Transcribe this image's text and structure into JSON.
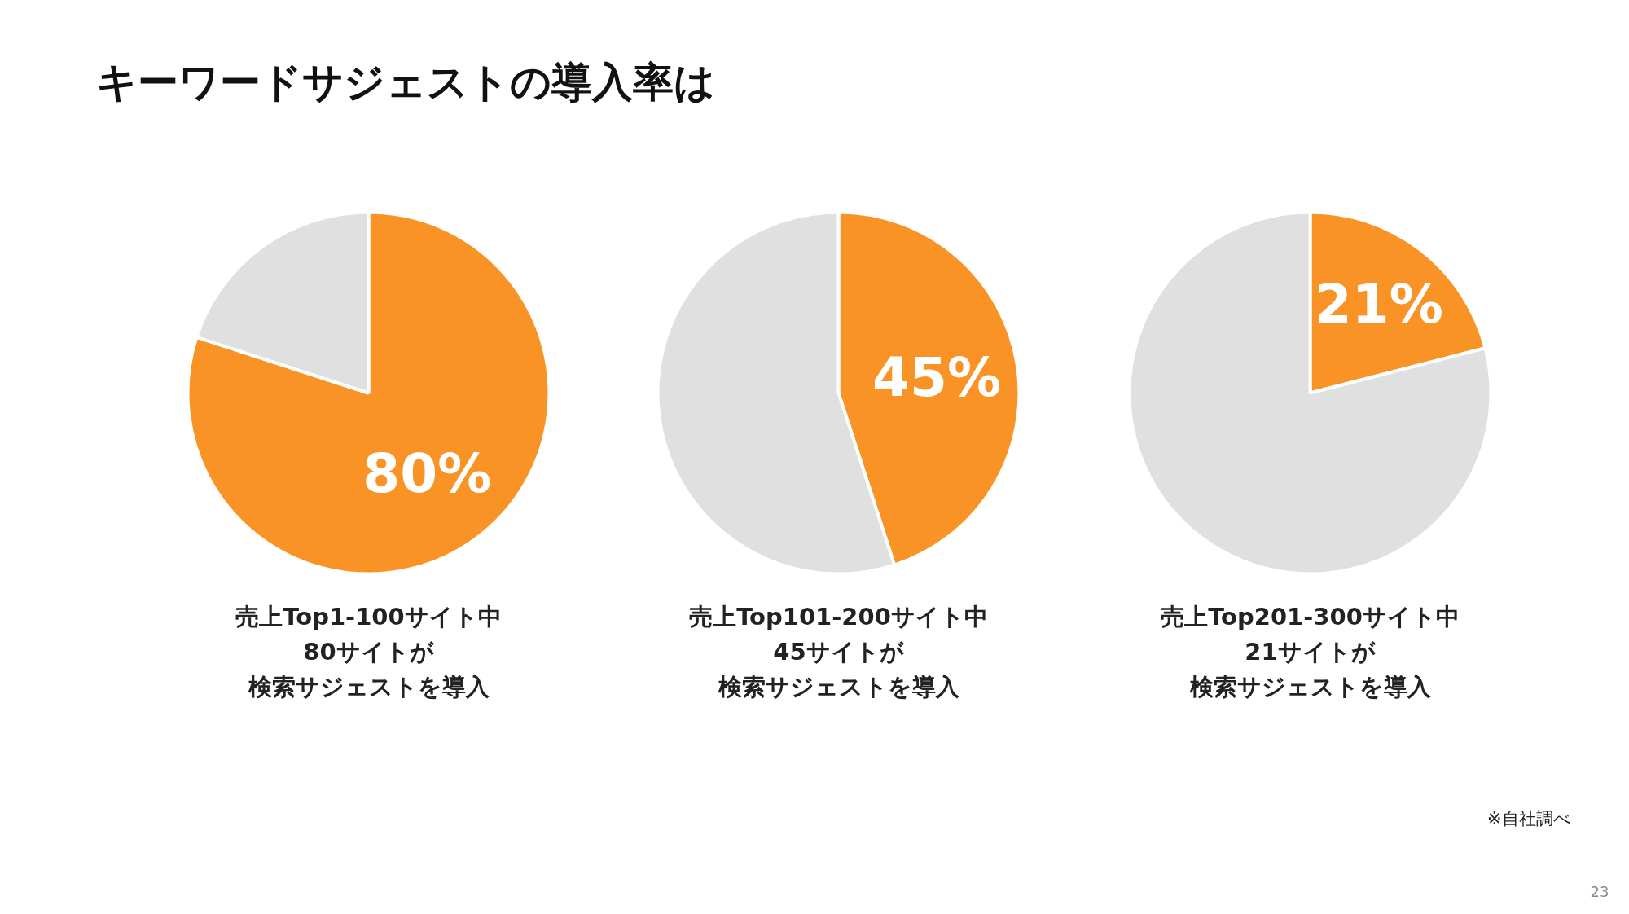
{
  "chart_data": [
    {
      "type": "pie",
      "title": "キーワードサジェストの導入率は",
      "categories": [
        null,
        null
      ],
      "values": [
        80,
        20
      ],
      "colors": [
        "#fa9326",
        "#e0e0e0"
      ],
      "value_labels": [
        "80%",
        null
      ],
      "annotations": [
        "売上Top1-100サイト中",
        "80サイトが",
        "検索サジェストを導入"
      ]
    },
    {
      "type": "pie",
      "categories": [
        null,
        null
      ],
      "values": [
        45,
        55
      ],
      "colors": [
        "#fa9326",
        "#e0e0e0"
      ],
      "value_labels": [
        "45%",
        null
      ],
      "annotations": [
        "売上Top101-200サイト中",
        "45サイトが",
        "検索サジェストを導入"
      ]
    },
    {
      "type": "pie",
      "categories": [
        null,
        null
      ],
      "values": [
        21,
        79
      ],
      "colors": [
        "#fa9326",
        "#e0e0e0"
      ],
      "value_labels": [
        "21%",
        null
      ],
      "annotations": [
        "売上Top201-300サイト中",
        "21サイトが",
        "検索サジェストを導入",
        "※自社調べ",
        "23"
      ]
    }
  ]
}
